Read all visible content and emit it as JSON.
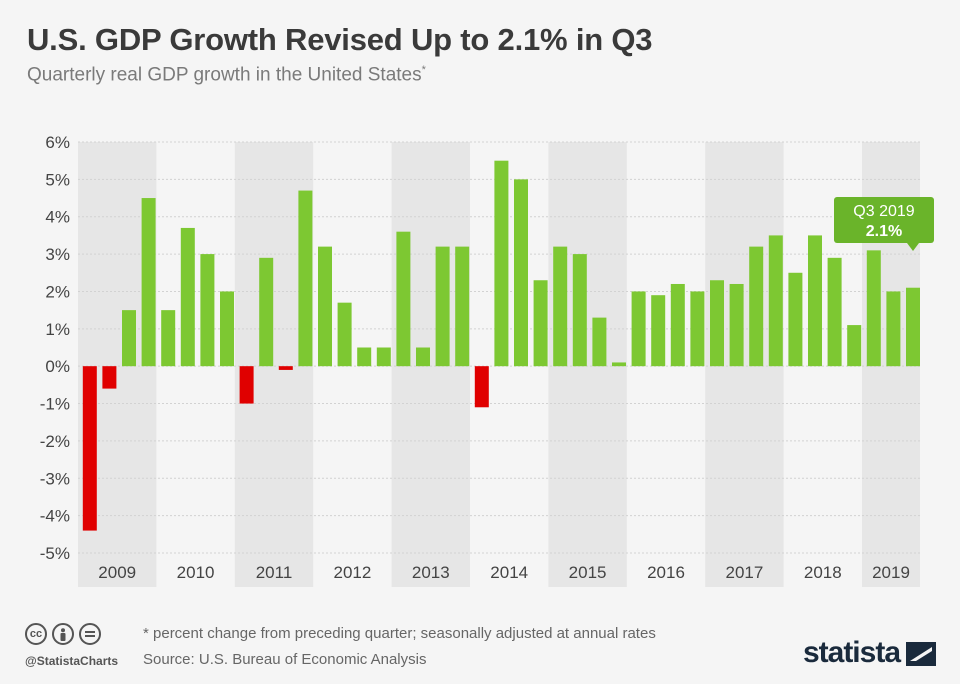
{
  "header": {
    "title": "U.S. GDP Growth Revised Up to 2.1% in Q3",
    "subtitle": "Quarterly real GDP growth in the United States",
    "subtitle_mark": "*"
  },
  "chart_data": {
    "type": "bar",
    "title": "U.S. GDP Growth Revised Up to 2.1% in Q3",
    "subtitle": "Quarterly real GDP growth in the United States*",
    "ylim": [
      -5,
      6
    ],
    "y_ticks": [
      "6%",
      "5%",
      "4%",
      "3%",
      "2%",
      "1%",
      "0%",
      "-1%",
      "-2%",
      "-3%",
      "-4%",
      "-5%"
    ],
    "y_tick_values": [
      6,
      5,
      4,
      3,
      2,
      1,
      0,
      -1,
      -2,
      -3,
      -4,
      -5
    ],
    "years": [
      "2009",
      "2010",
      "2011",
      "2012",
      "2013",
      "2014",
      "2015",
      "2016",
      "2017",
      "2018",
      "2019"
    ],
    "values": [
      -4.4,
      -0.6,
      1.5,
      4.5,
      1.5,
      3.7,
      3.0,
      2.0,
      -1.0,
      2.9,
      -0.1,
      4.7,
      3.2,
      1.7,
      0.5,
      0.5,
      3.6,
      0.5,
      3.2,
      3.2,
      -1.1,
      5.5,
      5.0,
      2.3,
      3.2,
      3.0,
      1.3,
      0.1,
      2.0,
      1.9,
      2.2,
      2.0,
      2.3,
      2.2,
      3.2,
      3.5,
      2.5,
      3.5,
      2.9,
      1.1,
      3.1,
      2.0,
      2.1
    ],
    "colors": {
      "positive": "#7dc832",
      "negative": "#e00000",
      "band": "#e6e6e6",
      "callout": "#6ab42a"
    },
    "callout": {
      "label": "Q3 2019",
      "value": "2.1%"
    },
    "grid": true
  },
  "footer": {
    "note": "* percent change from preceding quarter; seasonally adjusted at annual rates",
    "source": "Source: U.S. Bureau of Economic Analysis",
    "handle": "@StatistaCharts",
    "brand": "statista",
    "license_icons": [
      "cc-icon",
      "by-icon",
      "nd-icon"
    ]
  }
}
